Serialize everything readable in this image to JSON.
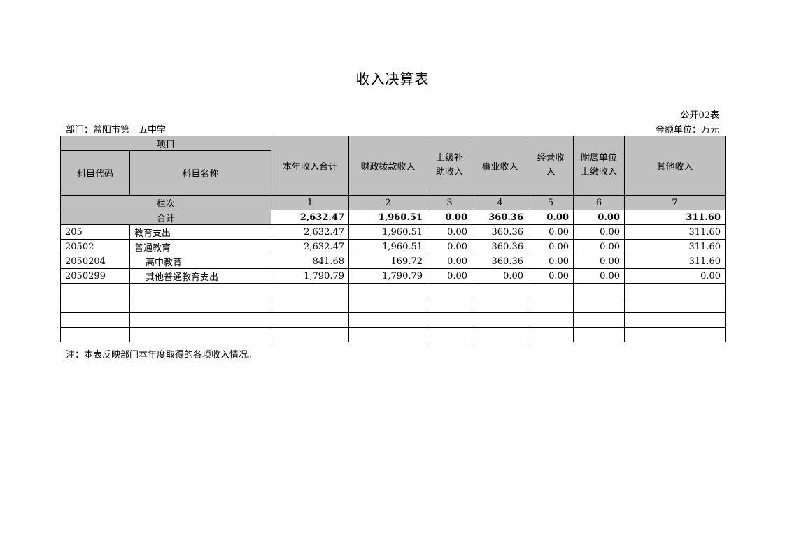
{
  "title": "收入决算表",
  "form_no": "公开02表",
  "department": "部门：益阳市第十五中学",
  "unit": "金额单位：万元",
  "header": {
    "project": "项目",
    "code": "科目代码",
    "name": "科目名称",
    "columns": [
      "本年收入合计",
      "财政拨款收入",
      "上级补助收入",
      "事业收入",
      "经营收入",
      "附属单位上缴收入",
      "其他收入"
    ],
    "column_index_label": "栏次",
    "column_indices": [
      "1",
      "2",
      "3",
      "4",
      "5",
      "6",
      "7"
    ]
  },
  "total": {
    "label": "合计",
    "values": [
      "2,632.47",
      "1,960.51",
      "0.00",
      "360.36",
      "0.00",
      "0.00",
      "311.60"
    ]
  },
  "rows": [
    {
      "code": "205",
      "name": "教育支出",
      "level": 1,
      "values": [
        "2,632.47",
        "1,960.51",
        "0.00",
        "360.36",
        "0.00",
        "0.00",
        "311.60"
      ]
    },
    {
      "code": "20502",
      "name": "普通教育",
      "level": 1,
      "values": [
        "2,632.47",
        "1,960.51",
        "0.00",
        "360.36",
        "0.00",
        "0.00",
        "311.60"
      ]
    },
    {
      "code": "2050204",
      "name": "高中教育",
      "level": 2,
      "values": [
        "841.68",
        "169.72",
        "0.00",
        "360.36",
        "0.00",
        "0.00",
        "311.60"
      ]
    },
    {
      "code": "2050299",
      "name": "其他普通教育支出",
      "level": 2,
      "values": [
        "1,790.79",
        "1,790.79",
        "0.00",
        "0.00",
        "0.00",
        "0.00",
        "0.00"
      ]
    }
  ],
  "note": "注：本表反映部门本年度取得的各项收入情况。"
}
